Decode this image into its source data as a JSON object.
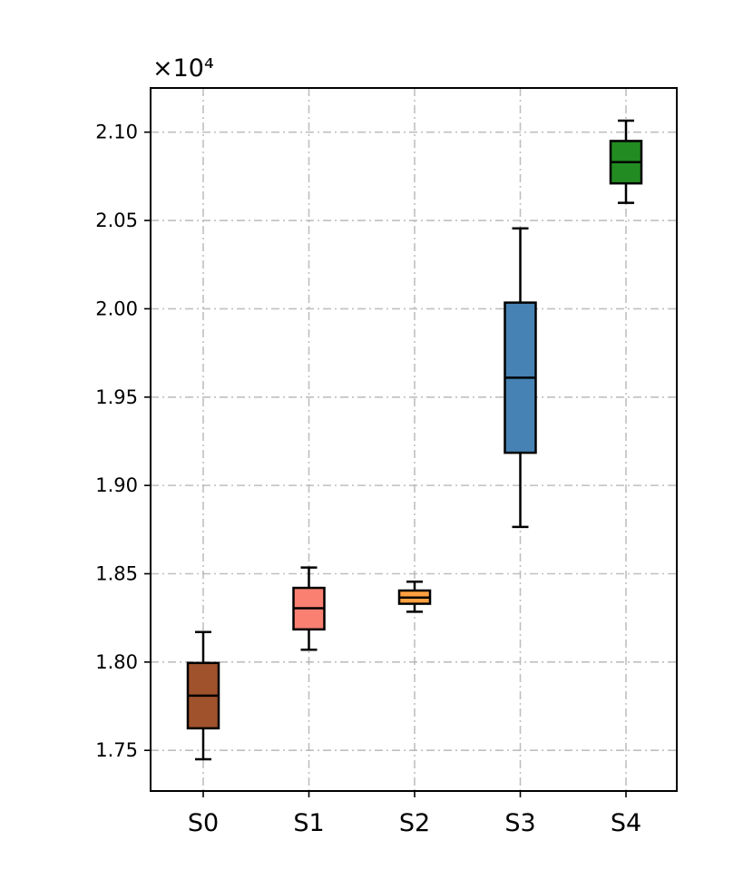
{
  "chart_data": {
    "type": "box",
    "title": "",
    "xlabel": "",
    "ylabel": "",
    "offset_text": "×10⁴",
    "scale_factor": 10000,
    "ylim": [
      17270,
      21250
    ],
    "yticks": [
      17500,
      18000,
      18500,
      19000,
      19500,
      20000,
      20500,
      21000
    ],
    "ytick_labels": [
      "1.75",
      "1.80",
      "1.85",
      "1.90",
      "1.95",
      "2.00",
      "2.05",
      "2.10"
    ],
    "grid": true,
    "categories": [
      "S0",
      "S1",
      "S2",
      "S3",
      "S4"
    ],
    "boxes": [
      {
        "name": "S0",
        "color": "#a0522d",
        "whisker_low": 17450,
        "q1": 17625,
        "median": 17810,
        "q3": 17995,
        "whisker_high": 18170
      },
      {
        "name": "S1",
        "color": "#fa8072",
        "whisker_low": 18070,
        "q1": 18185,
        "median": 18305,
        "q3": 18420,
        "whisker_high": 18535
      },
      {
        "name": "S2",
        "color": "#ffa040",
        "whisker_low": 18285,
        "q1": 18330,
        "median": 18365,
        "q3": 18405,
        "whisker_high": 18455
      },
      {
        "name": "S3",
        "color": "#4682b4",
        "whisker_low": 18765,
        "q1": 19185,
        "median": 19610,
        "q3": 20035,
        "whisker_high": 20455
      },
      {
        "name": "S4",
        "color": "#228b22",
        "whisker_low": 20600,
        "q1": 20710,
        "median": 20830,
        "q3": 20950,
        "whisker_high": 21065
      }
    ]
  }
}
